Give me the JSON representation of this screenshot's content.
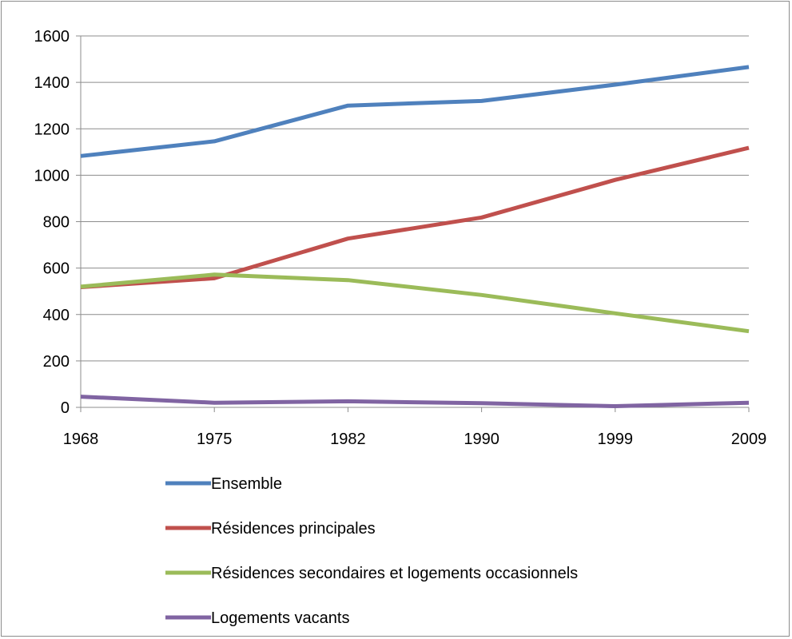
{
  "chart_data": {
    "type": "line",
    "title": "",
    "xlabel": "",
    "ylabel": "",
    "categories": [
      "1968",
      "1975",
      "1982",
      "1990",
      "1999",
      "2009"
    ],
    "ylim": [
      0,
      1600
    ],
    "yticks": [
      "0",
      "200",
      "400",
      "600",
      "800",
      "1000",
      "1200",
      "1400",
      "1600"
    ],
    "grid": true,
    "legend_position": "bottom",
    "series": [
      {
        "name": "Ensemble",
        "color": "#4f81bd",
        "values": [
          1083,
          1146,
          1300,
          1320,
          1390,
          1466
        ]
      },
      {
        "name": "Résidences principales",
        "color": "#c0504d",
        "values": [
          518,
          556,
          727,
          818,
          980,
          1118
        ]
      },
      {
        "name": "Résidences secondaires et logements occasionnels",
        "color": "#9bbb59",
        "values": [
          520,
          572,
          548,
          484,
          405,
          328
        ]
      },
      {
        "name": "Logements vacants",
        "color": "#8064a2",
        "values": [
          46,
          20,
          26,
          18,
          5,
          20
        ]
      }
    ]
  }
}
